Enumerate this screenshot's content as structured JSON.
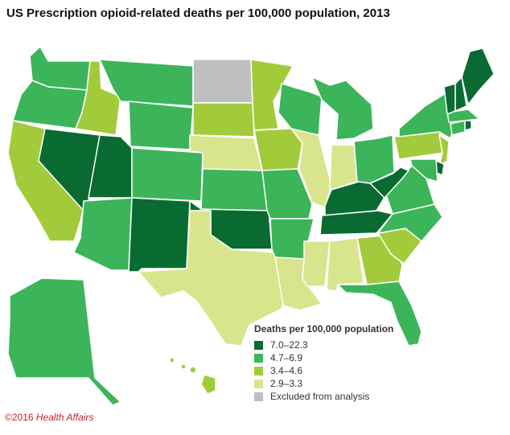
{
  "title": "US Prescription opioid-related deaths per 100,000 population, 2013",
  "legend": {
    "title": "Deaths per 100,000 population",
    "items": [
      {
        "label": "7.0–22.3",
        "color": "#0a6b32"
      },
      {
        "label": "4.7–6.9",
        "color": "#3cb55a"
      },
      {
        "label": "3.4–4.6",
        "color": "#a2cb3b"
      },
      {
        "label": "2.9–3.3",
        "color": "#d9e58c"
      },
      {
        "label": "Excluded from analysis",
        "color": "#bfbfbf"
      }
    ]
  },
  "credit": {
    "year": "©2016",
    "source": "Health Affairs"
  },
  "chart_data": {
    "type": "choropleth",
    "region": "United States",
    "bins": [
      "7.0–22.3",
      "4.7–6.9",
      "3.4–4.6",
      "2.9–3.3",
      "Excluded from analysis"
    ],
    "states": {
      "WA": "4.7–6.9",
      "OR": "4.7–6.9",
      "CA": "3.4–4.6",
      "NV": "7.0–22.3",
      "ID": "3.4–4.6",
      "MT": "4.7–6.9",
      "WY": "4.7–6.9",
      "UT": "7.0–22.3",
      "AZ": "4.7–6.9",
      "CO": "4.7–6.9",
      "NM": "7.0–22.3",
      "ND": "Excluded from analysis",
      "SD": "3.4–4.6",
      "NE": "2.9–3.3",
      "KS": "4.7–6.9",
      "OK": "7.0–22.3",
      "TX": "2.9–3.3",
      "MN": "3.4–4.6",
      "IA": "3.4–4.6",
      "MO": "4.7–6.9",
      "AR": "4.7–6.9",
      "LA": "2.9–3.3",
      "WI": "4.7–6.9",
      "IL": "2.9–3.3",
      "MI": "4.7–6.9",
      "IN": "2.9–3.3",
      "OH": "4.7–6.9",
      "KY": "7.0–22.3",
      "TN": "7.0–22.3",
      "MS": "2.9–3.3",
      "AL": "2.9–3.3",
      "GA": "3.4–4.6",
      "FL": "4.7–6.9",
      "SC": "3.4–4.6",
      "NC": "4.7–6.9",
      "VA": "4.7–6.9",
      "WV": "7.0–22.3",
      "PA": "3.4–4.6",
      "NY": "4.7–6.9",
      "NJ": "3.4–4.6",
      "DE": "7.0–22.3",
      "MD": "4.7–6.9",
      "CT": "4.7–6.9",
      "RI": "7.0–22.3",
      "MA": "4.7–6.9",
      "VT": "7.0–22.3",
      "NH": "7.0–22.3",
      "ME": "7.0–22.3",
      "AK": "4.7–6.9",
      "HI": "3.4–4.6"
    }
  }
}
